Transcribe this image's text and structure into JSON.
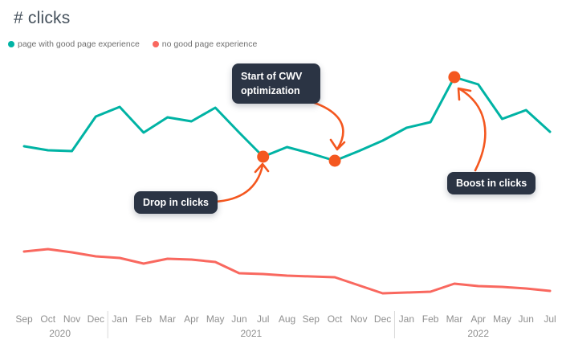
{
  "title": "# clicks",
  "legend": {
    "items": [
      {
        "label": "page with good page experience",
        "color": "#00b3a4"
      },
      {
        "label": "no good page experience",
        "color": "#f9685f"
      }
    ]
  },
  "colors": {
    "series_good": "#00b3a4",
    "series_bad": "#f9685f",
    "accent_orange": "#f4571f",
    "annotation_bg": "#2b3444",
    "annotation_text": "#ffffff",
    "axis_text": "#8f8f8f",
    "title_text": "#45515c",
    "separator": "#d9d9d9"
  },
  "chart_data": {
    "type": "line",
    "title": "# clicks",
    "grid": false,
    "legend_position": "top-left",
    "y_axis_shown": false,
    "units": "relative clicks (no y-axis scale shown in image)",
    "x_labels": [
      "Sep",
      "Oct",
      "Nov",
      "Dec",
      "Jan",
      "Feb",
      "Mar",
      "Apr",
      "May",
      "Jun",
      "Jul",
      "Aug",
      "Sep",
      "Oct",
      "Nov",
      "Dec",
      "Jan",
      "Feb",
      "Mar",
      "Apr",
      "May",
      "Jun",
      "Jul"
    ],
    "year_groups": [
      {
        "label": "2020",
        "start": 0,
        "end": 3
      },
      {
        "label": "2021",
        "start": 4,
        "end": 15
      },
      {
        "label": "2022",
        "start": 16,
        "end": 22
      }
    ],
    "series": [
      {
        "name": "page with good page experience",
        "color": "#00b3a4",
        "values": [
          198,
          193,
          192,
          235,
          247,
          215,
          234,
          229,
          246,
          215,
          185,
          197,
          189,
          180,
          192,
          205,
          221,
          228,
          284,
          275,
          232,
          243,
          216
        ]
      },
      {
        "name": "no good page experience",
        "color": "#f9685f",
        "values": [
          67,
          70,
          66,
          61,
          59,
          52,
          58,
          57,
          54,
          40,
          39,
          37,
          36,
          35,
          25,
          15,
          16,
          17,
          27,
          24,
          23,
          21,
          18
        ]
      }
    ],
    "markers": [
      {
        "series": 0,
        "index": 10,
        "x_label": "Jul 2021",
        "value": 185
      },
      {
        "series": 0,
        "index": 13,
        "x_label": "Oct 2021",
        "value": 180
      },
      {
        "series": 0,
        "index": 18,
        "x_label": "Mar 2022",
        "value": 284
      }
    ]
  },
  "annotations": [
    {
      "label": "Start of CWV optimization",
      "points_to": "Oct 2021"
    },
    {
      "label": "Drop in clicks",
      "points_to": "Jul 2021"
    },
    {
      "label": "Boost in clicks",
      "points_to": "Mar 2022"
    }
  ]
}
